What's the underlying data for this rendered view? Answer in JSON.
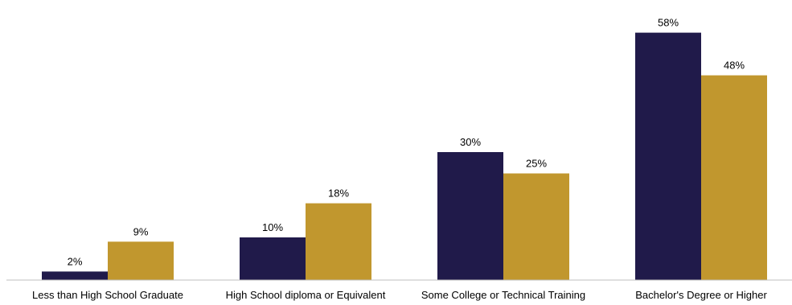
{
  "chart_data": {
    "type": "bar",
    "categories": [
      "Less than High School Graduate",
      "High School diploma or Equivalent",
      "Some College or Technical Training",
      "Bachelor's Degree or Higher"
    ],
    "series": [
      {
        "values": [
          2,
          10,
          30,
          58
        ],
        "labels": [
          "2%",
          "10%",
          "30%",
          "58%"
        ],
        "color": "#201a4a"
      },
      {
        "values": [
          9,
          18,
          25,
          48
        ],
        "labels": [
          "9%",
          "18%",
          "25%",
          "48%"
        ],
        "color": "#c1972e"
      }
    ],
    "title": "",
    "xlabel": "",
    "ylabel": "",
    "ylim": [
      0,
      60
    ],
    "value_format": "percent",
    "grid": false,
    "legend": "none",
    "axis_color": "#bfbfbf"
  }
}
